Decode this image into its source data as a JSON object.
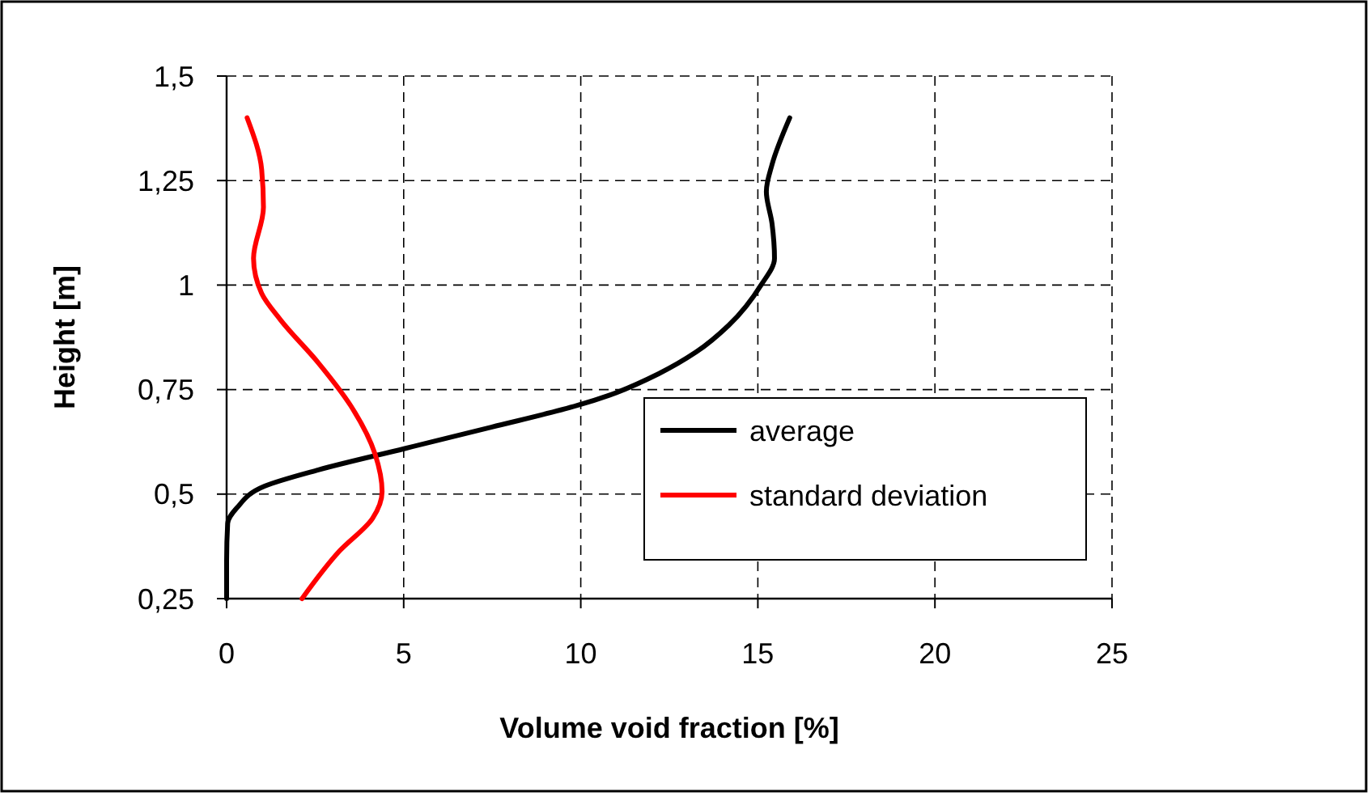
{
  "chart_data": {
    "type": "line",
    "xlabel": "Volume void fraction [%]",
    "ylabel": "Height [m]",
    "xlim": [
      0,
      25
    ],
    "xticks": [
      0,
      5,
      10,
      15,
      20,
      25
    ],
    "ylim": [
      0.25,
      1.5
    ],
    "yticks": [
      {
        "value": 0.25,
        "label": "0,25"
      },
      {
        "value": 0.5,
        "label": "0,5"
      },
      {
        "value": 0.75,
        "label": "0,75"
      },
      {
        "value": 1,
        "label": "1"
      },
      {
        "value": 1.25,
        "label": "1,25"
      },
      {
        "value": 1.5,
        "label": "1,5"
      }
    ],
    "grid": true,
    "legend": "bottom right",
    "line_style": "solid",
    "marker": "none",
    "series": [
      {
        "name": "average",
        "color": "#000000",
        "x": [
          15.9,
          15.4,
          15.24,
          15.4,
          15.47,
          15.09,
          14.18,
          13.26,
          12.2,
          10.82,
          9.9,
          7.47,
          5.03,
          2.59,
          1.07,
          0.3,
          0.03,
          0,
          0
        ],
        "values": [
          1.4,
          1.288,
          1.224,
          1.147,
          1.064,
          1.0,
          0.904,
          0.84,
          0.788,
          0.737,
          0.712,
          0.66,
          0.609,
          0.558,
          0.519,
          0.468,
          0.43,
          0.34,
          0.25
        ]
      },
      {
        "name": "standard deviation",
        "color": "#ff0000",
        "x": [
          0.58,
          0.99,
          1.04,
          0.76,
          0.99,
          1.52,
          2.59,
          3.5,
          4.19,
          4.39,
          4.12,
          3.2,
          2.13
        ],
        "values": [
          1.4,
          1.276,
          1.186,
          1.064,
          0.98,
          0.917,
          0.814,
          0.712,
          0.596,
          0.506,
          0.442,
          0.365,
          0.25
        ]
      }
    ]
  }
}
